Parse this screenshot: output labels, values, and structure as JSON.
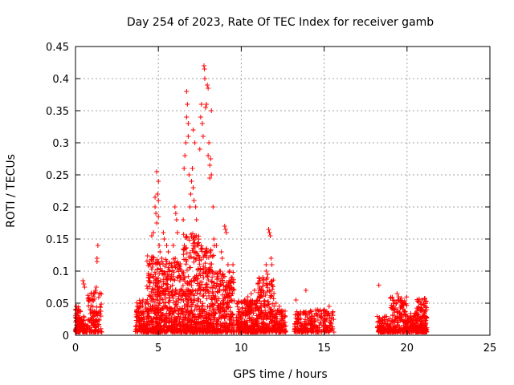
{
  "chart_data": {
    "type": "scatter",
    "title": "Day 254 of 2023, Rate Of TEC Index for receiver gamb",
    "xlabel": "GPS time / hours",
    "ylabel": "ROTI / TECUs",
    "xlim": [
      0,
      25
    ],
    "ylim": [
      0,
      0.45
    ],
    "x_ticks": [
      0,
      5,
      10,
      15,
      20,
      25
    ],
    "x_tick_labels": [
      "0",
      "5",
      "10",
      "15",
      "20",
      "25"
    ],
    "y_ticks": [
      0,
      0.05,
      0.1,
      0.15,
      0.2,
      0.25,
      0.3,
      0.35,
      0.4,
      0.45
    ],
    "y_tick_labels": [
      "0",
      "0.05",
      "0.1",
      "0.15",
      "0.2",
      "0.25",
      "0.3",
      "0.35",
      "0.4",
      "0.45"
    ],
    "grid": true,
    "marker": "plus",
    "marker_color": "#ff0000",
    "clusters": [
      {
        "x": [
          0.0,
          0.3
        ],
        "ymin": 0.005,
        "ymax": 0.045,
        "n": 90
      },
      {
        "x": [
          0.3,
          0.75
        ],
        "ymin": 0.005,
        "ymax": 0.03,
        "n": 50
      },
      {
        "x": [
          0.75,
          1.6
        ],
        "ymin": 0.005,
        "ymax": 0.07,
        "n": 120
      },
      {
        "x": [
          3.6,
          4.4
        ],
        "ymin": 0.005,
        "ymax": 0.055,
        "n": 130
      },
      {
        "x": [
          4.3,
          5.2
        ],
        "ymin": 0.005,
        "ymax": 0.13,
        "n": 260
      },
      {
        "x": [
          5.2,
          6.5
        ],
        "ymin": 0.005,
        "ymax": 0.12,
        "n": 320
      },
      {
        "x": [
          6.5,
          7.5
        ],
        "ymin": 0.005,
        "ymax": 0.16,
        "n": 300
      },
      {
        "x": [
          7.5,
          8.4
        ],
        "ymin": 0.005,
        "ymax": 0.14,
        "n": 260
      },
      {
        "x": [
          8.4,
          9.6
        ],
        "ymin": 0.005,
        "ymax": 0.1,
        "n": 250
      },
      {
        "x": [
          9.7,
          11.0
        ],
        "ymin": 0.005,
        "ymax": 0.055,
        "n": 260
      },
      {
        "x": [
          11.0,
          12.0
        ],
        "ymin": 0.005,
        "ymax": 0.09,
        "n": 220
      },
      {
        "x": [
          12.0,
          12.7
        ],
        "ymin": 0.005,
        "ymax": 0.04,
        "n": 110
      },
      {
        "x": [
          13.2,
          15.6
        ],
        "ymin": 0.005,
        "ymax": 0.04,
        "n": 240
      },
      {
        "x": [
          18.2,
          19.0
        ],
        "ymin": 0.005,
        "ymax": 0.03,
        "n": 110
      },
      {
        "x": [
          19.0,
          20.0
        ],
        "ymin": 0.005,
        "ymax": 0.06,
        "n": 180
      },
      {
        "x": [
          20.0,
          20.6
        ],
        "ymin": 0.005,
        "ymax": 0.035,
        "n": 100
      },
      {
        "x": [
          20.6,
          21.2
        ],
        "ymin": 0.005,
        "ymax": 0.058,
        "n": 150
      }
    ],
    "points": [
      [
        0.05,
        0.045
      ],
      [
        0.1,
        0.04
      ],
      [
        0.45,
        0.085
      ],
      [
        0.5,
        0.08
      ],
      [
        0.55,
        0.075
      ],
      [
        1.1,
        0.065
      ],
      [
        1.2,
        0.07
      ],
      [
        1.25,
        0.075
      ],
      [
        1.3,
        0.12
      ],
      [
        1.3,
        0.115
      ],
      [
        1.35,
        0.14
      ],
      [
        4.4,
        0.085
      ],
      [
        4.5,
        0.11
      ],
      [
        4.6,
        0.155
      ],
      [
        4.7,
        0.16
      ],
      [
        4.8,
        0.2
      ],
      [
        4.8,
        0.215
      ],
      [
        4.85,
        0.19
      ],
      [
        4.9,
        0.175
      ],
      [
        4.9,
        0.255
      ],
      [
        4.95,
        0.22
      ],
      [
        5.0,
        0.24
      ],
      [
        5.0,
        0.21
      ],
      [
        5.0,
        0.185
      ],
      [
        5.05,
        0.14
      ],
      [
        5.1,
        0.13
      ],
      [
        5.2,
        0.12
      ],
      [
        5.3,
        0.16
      ],
      [
        5.35,
        0.15
      ],
      [
        5.5,
        0.14
      ],
      [
        5.6,
        0.13
      ],
      [
        5.9,
        0.14
      ],
      [
        6.0,
        0.2
      ],
      [
        6.05,
        0.19
      ],
      [
        6.1,
        0.18
      ],
      [
        6.15,
        0.16
      ],
      [
        6.3,
        0.09
      ],
      [
        6.4,
        0.1
      ],
      [
        6.5,
        0.18
      ],
      [
        6.55,
        0.26
      ],
      [
        6.6,
        0.28
      ],
      [
        6.65,
        0.3
      ],
      [
        6.7,
        0.34
      ],
      [
        6.7,
        0.38
      ],
      [
        6.75,
        0.36
      ],
      [
        6.8,
        0.33
      ],
      [
        6.8,
        0.31
      ],
      [
        6.85,
        0.25
      ],
      [
        6.9,
        0.2
      ],
      [
        6.95,
        0.22
      ],
      [
        7.0,
        0.24
      ],
      [
        7.05,
        0.26
      ],
      [
        7.1,
        0.23
      ],
      [
        7.1,
        0.32
      ],
      [
        7.15,
        0.21
      ],
      [
        7.2,
        0.3
      ],
      [
        7.25,
        0.2
      ],
      [
        7.3,
        0.18
      ],
      [
        7.4,
        0.14
      ],
      [
        7.5,
        0.29
      ],
      [
        7.55,
        0.34
      ],
      [
        7.6,
        0.36
      ],
      [
        7.65,
        0.33
      ],
      [
        7.7,
        0.31
      ],
      [
        7.75,
        0.42
      ],
      [
        7.78,
        0.415
      ],
      [
        7.8,
        0.4
      ],
      [
        7.85,
        0.355
      ],
      [
        7.9,
        0.36
      ],
      [
        7.95,
        0.39
      ],
      [
        8.0,
        0.385
      ],
      [
        8.0,
        0.28
      ],
      [
        8.05,
        0.3
      ],
      [
        8.1,
        0.265
      ],
      [
        8.1,
        0.245
      ],
      [
        8.15,
        0.275
      ],
      [
        8.2,
        0.25
      ],
      [
        8.2,
        0.35
      ],
      [
        8.3,
        0.2
      ],
      [
        8.35,
        0.15
      ],
      [
        8.5,
        0.14
      ],
      [
        8.7,
        0.1
      ],
      [
        8.8,
        0.13
      ],
      [
        8.85,
        0.12
      ],
      [
        9.0,
        0.17
      ],
      [
        9.05,
        0.165
      ],
      [
        9.1,
        0.16
      ],
      [
        9.2,
        0.11
      ],
      [
        9.3,
        0.1
      ],
      [
        9.4,
        0.09
      ],
      [
        9.5,
        0.11
      ],
      [
        10.2,
        0.055
      ],
      [
        10.4,
        0.06
      ],
      [
        10.6,
        0.065
      ],
      [
        10.8,
        0.07
      ],
      [
        11.0,
        0.08
      ],
      [
        11.1,
        0.085
      ],
      [
        11.3,
        0.09
      ],
      [
        11.5,
        0.11
      ],
      [
        11.5,
        0.1
      ],
      [
        11.6,
        0.095
      ],
      [
        11.65,
        0.165
      ],
      [
        11.7,
        0.16
      ],
      [
        11.75,
        0.155
      ],
      [
        11.8,
        0.12
      ],
      [
        11.85,
        0.11
      ],
      [
        12.1,
        0.05
      ],
      [
        12.3,
        0.045
      ],
      [
        13.3,
        0.055
      ],
      [
        13.9,
        0.07
      ],
      [
        14.4,
        0.03
      ],
      [
        15.0,
        0.04
      ],
      [
        15.3,
        0.045
      ],
      [
        15.5,
        0.01
      ],
      [
        18.3,
        0.078
      ],
      [
        19.4,
        0.065
      ],
      [
        19.5,
        0.06
      ],
      [
        19.6,
        0.055
      ],
      [
        20.9,
        0.055
      ],
      [
        21.0,
        0.05
      ]
    ]
  }
}
